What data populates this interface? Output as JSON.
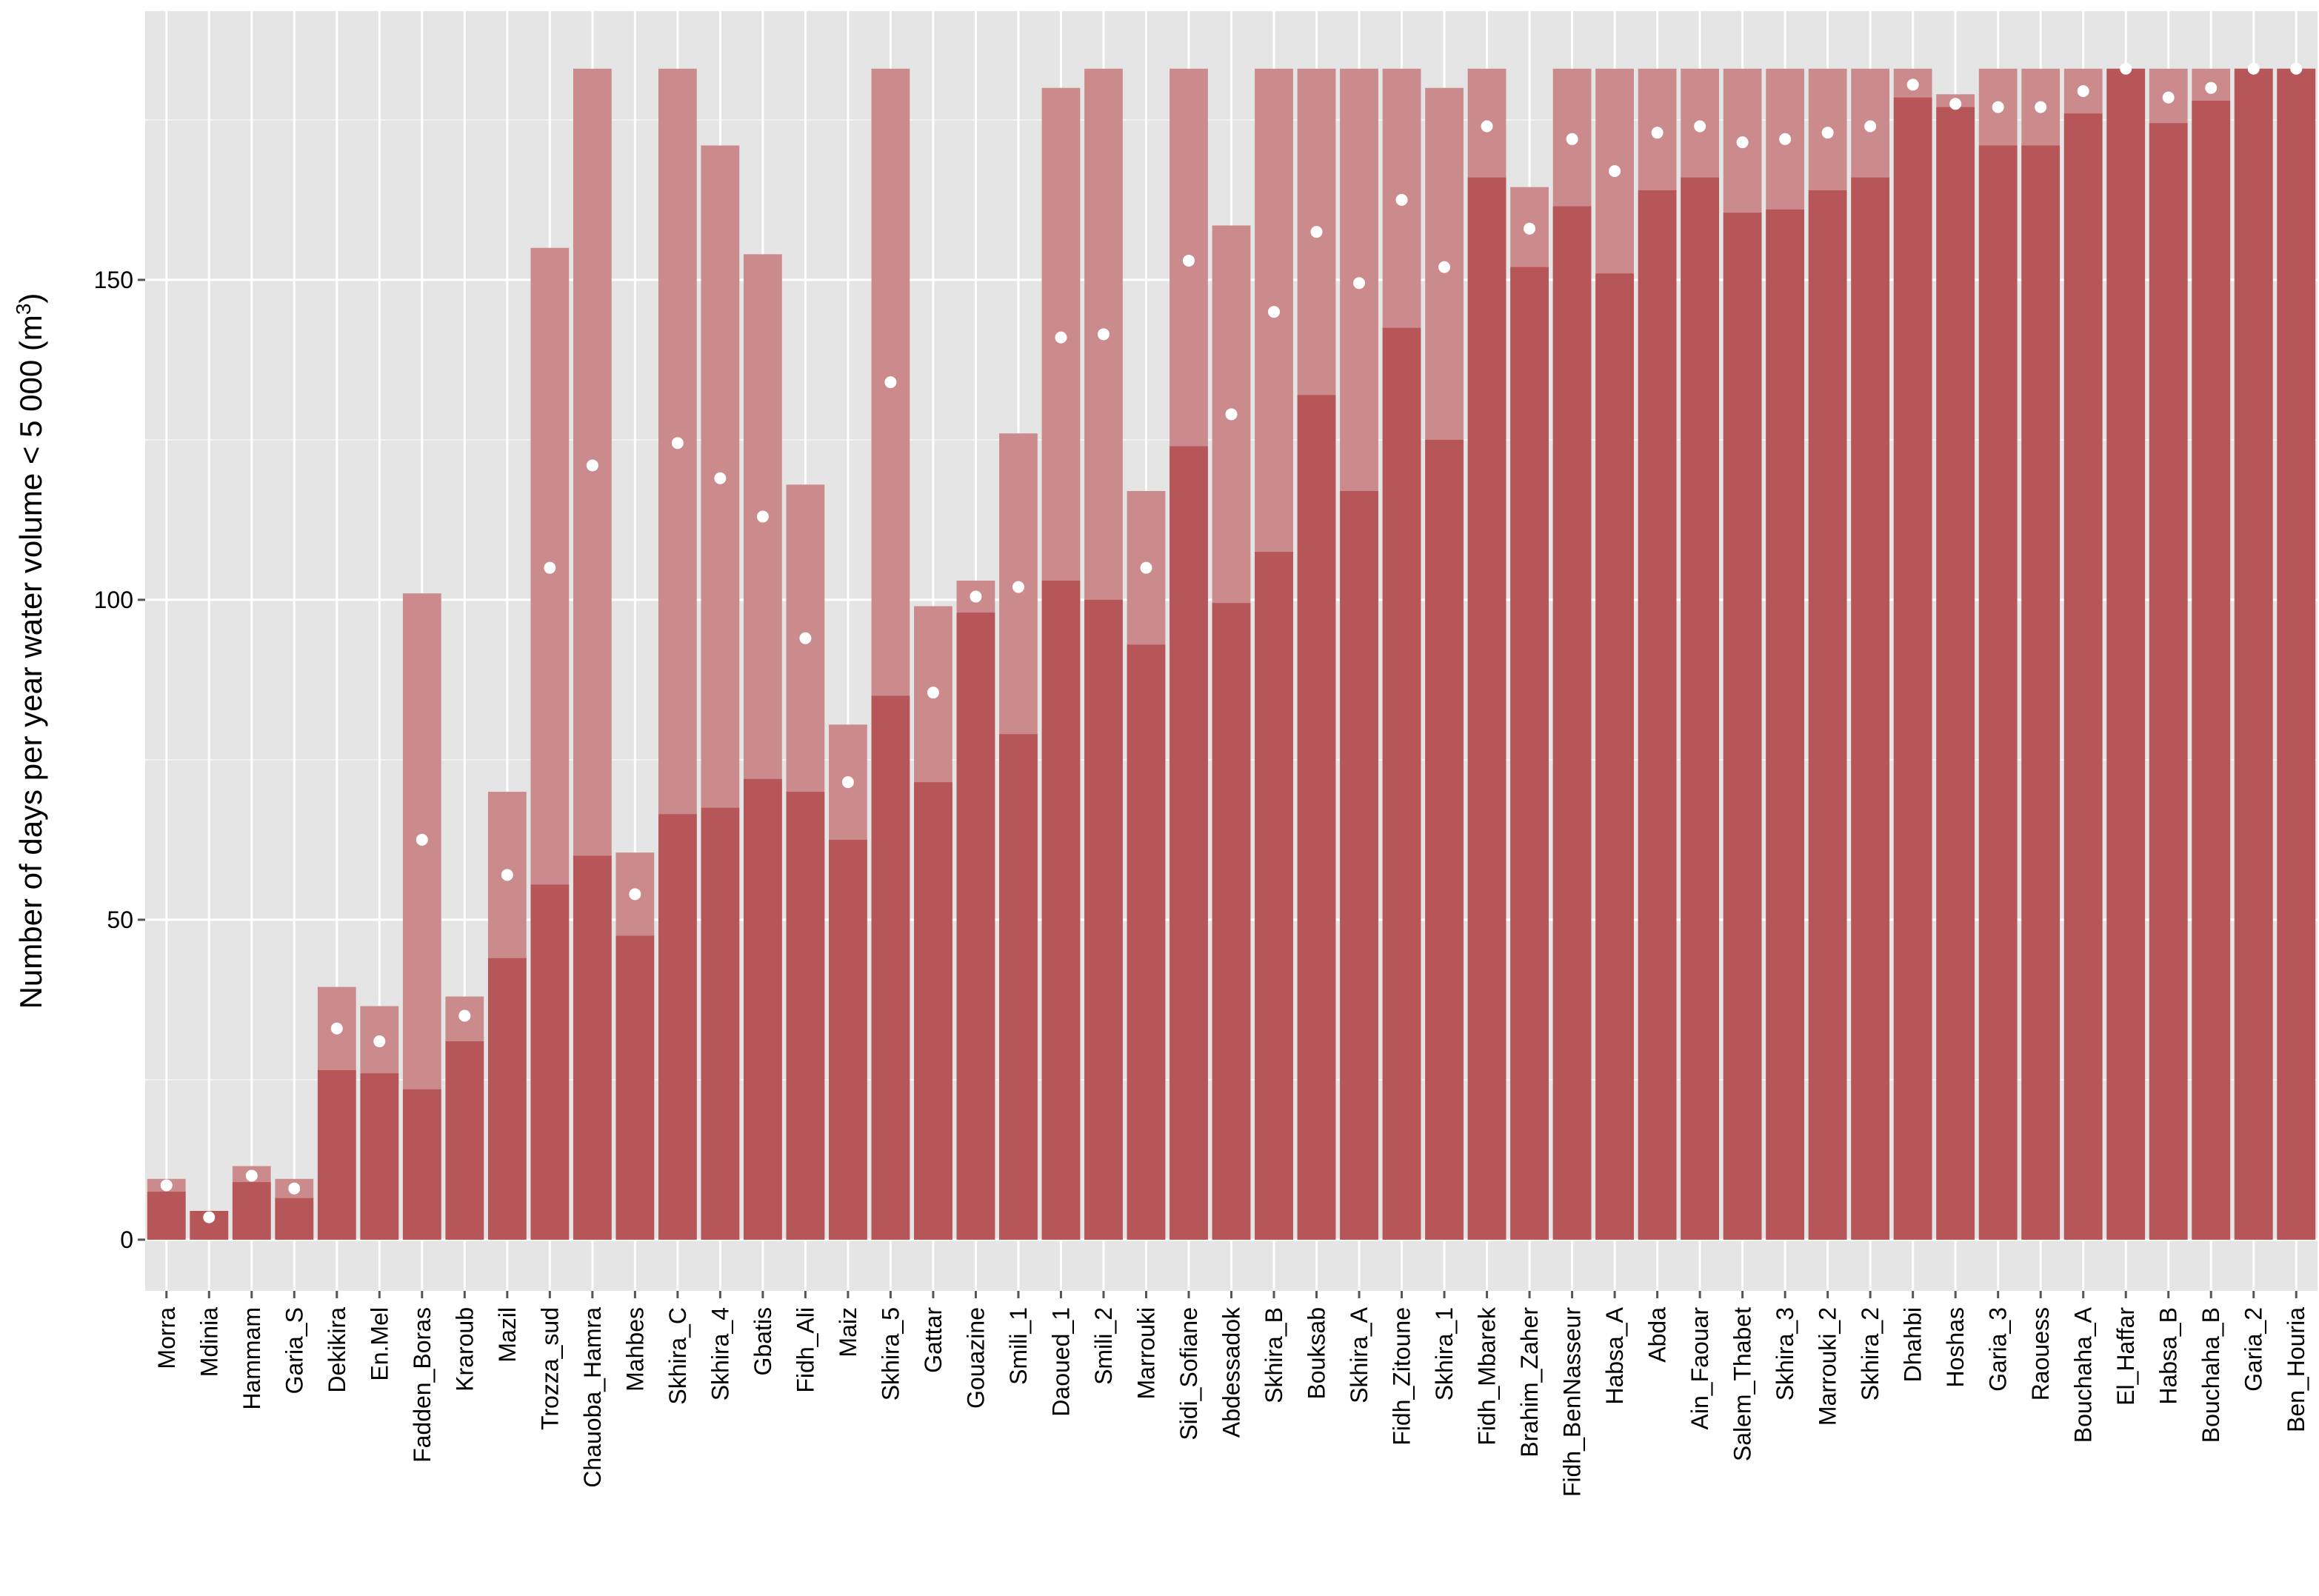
{
  "chart_data": {
    "type": "bar",
    "ylabel": "Number of days per year water volume < 5 000 (m³)",
    "ylabel_main": "Number of days per year water volume < 5 000 (m",
    "ylabel_sup": "3",
    "ylabel_end": ")",
    "ylim": [
      -8,
      192
    ],
    "yticks": [
      0,
      50,
      100,
      150
    ],
    "grid": true,
    "legend": "none",
    "colors": {
      "panel": "#e5e5e5",
      "gridline": "#ffffff",
      "bar_dark": "#b75658",
      "bar_light": "#cb8b8d",
      "dot": "#ffffff",
      "tick": "#555555"
    },
    "categories": [
      "Morra",
      "Mdinia",
      "Hammam",
      "Garia_S",
      "Dekikira",
      "En.Mel",
      "Fadden_Boras",
      "Kraroub",
      "Mazil",
      "Trozza_sud",
      "Chauoba_Hamra",
      "Mahbes",
      "Skhira_C",
      "Skhira_4",
      "Gbatis",
      "Fidh_Ali",
      "Maiz",
      "Skhira_5",
      "Gattar",
      "Gouazine",
      "Smili_1",
      "Daoued_1",
      "Smili_2",
      "Marrouki",
      "Sidi_Sofiane",
      "Abdessadok",
      "Skhira_B",
      "Bouksab",
      "Skhira_A",
      "Fidh_Zitoune",
      "Skhira_1",
      "Fidh_Mbarek",
      "Brahim_Zaher",
      "Fidh_BenNasseur",
      "Habsa_A",
      "Abda",
      "Ain_Faouar",
      "Salem_Thabet",
      "Skhira_3",
      "Marrouki_2",
      "Skhira_2",
      "Dhahbi",
      "Hoshas",
      "Garia_3",
      "Raouess",
      "Bouchaha_A",
      "El_Haffar",
      "Habsa_B",
      "Bouchaha_B",
      "Garia_2",
      "Ben_Houria"
    ],
    "series": [
      {
        "role": "lower",
        "values": [
          7.5,
          4.5,
          9,
          6.5,
          26.5,
          26,
          23.5,
          31,
          44,
          55.5,
          60,
          47.5,
          66.5,
          67.5,
          72,
          70,
          62.5,
          85,
          71.5,
          98,
          79,
          103,
          100,
          93,
          124,
          99.5,
          107.5,
          132,
          117,
          142.5,
          125,
          166,
          152,
          161.5,
          151,
          164,
          166,
          160.5,
          161,
          164,
          166,
          178.5,
          177,
          171,
          171,
          176,
          183,
          174.5,
          178,
          183,
          183
        ]
      },
      {
        "role": "upper",
        "values": [
          9.5,
          4.5,
          11.5,
          9.5,
          39.5,
          36.5,
          101,
          38,
          70,
          155,
          183,
          60.5,
          183,
          171,
          154,
          118,
          80.5,
          183,
          99,
          103,
          126,
          180,
          183,
          117,
          183,
          158.5,
          183,
          183,
          183,
          183,
          180,
          183,
          164.5,
          183,
          183,
          183,
          183,
          183,
          183,
          183,
          183,
          183,
          179,
          183,
          183,
          183,
          183,
          183,
          183,
          183,
          183
        ]
      },
      {
        "role": "mean",
        "values": [
          8.5,
          3.5,
          10,
          8,
          33,
          31,
          62.5,
          35,
          57,
          105,
          121,
          54,
          124.5,
          119,
          113,
          94,
          71.5,
          134,
          85.5,
          100.5,
          102,
          141,
          141.5,
          105,
          153,
          129,
          145,
          157.5,
          149.5,
          162.5,
          152,
          174,
          158,
          172,
          167,
          173,
          174,
          171.5,
          172,
          173,
          174,
          180.5,
          177.5,
          177,
          177,
          179.5,
          183,
          178.5,
          180,
          183,
          183
        ]
      }
    ]
  }
}
